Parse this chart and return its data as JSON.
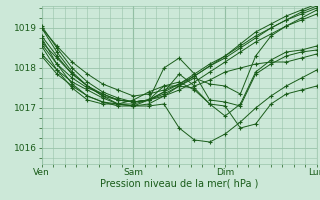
{
  "xlabel": "Pression niveau de la mer( hPa )",
  "bg_color": "#cce8d8",
  "plot_bg_color": "#cce8d8",
  "grid_color": "#99c4aa",
  "line_color": "#1a5c1a",
  "xlim": [
    0,
    72
  ],
  "ylim": [
    1015.6,
    1019.55
  ],
  "yticks": [
    1016,
    1017,
    1018,
    1019
  ],
  "xtick_positions": [
    0,
    24,
    48,
    72
  ],
  "xtick_labels": [
    "Ven",
    "Sam",
    "Dim",
    "Lun"
  ],
  "series": [
    [
      0,
      1019.0,
      4,
      1018.55,
      8,
      1018.15,
      12,
      1017.85,
      16,
      1017.6,
      20,
      1017.45,
      24,
      1017.3,
      28,
      1017.35,
      32,
      1017.45,
      36,
      1017.6,
      40,
      1017.8,
      44,
      1018.05,
      48,
      1018.3,
      52,
      1018.6,
      56,
      1018.9,
      60,
      1019.1,
      64,
      1019.3,
      68,
      1019.45,
      72,
      1019.6
    ],
    [
      0,
      1019.05,
      4,
      1018.5,
      8,
      1018.0,
      12,
      1017.65,
      16,
      1017.4,
      20,
      1017.25,
      24,
      1017.15,
      28,
      1017.2,
      32,
      1017.3,
      36,
      1017.45,
      40,
      1017.65,
      44,
      1017.9,
      48,
      1018.15,
      52,
      1018.4,
      56,
      1018.65,
      60,
      1018.85,
      64,
      1019.05,
      68,
      1019.25,
      72,
      1019.45
    ],
    [
      0,
      1019.0,
      4,
      1018.4,
      8,
      1017.9,
      12,
      1017.55,
      16,
      1017.3,
      20,
      1017.2,
      24,
      1017.15,
      28,
      1017.2,
      32,
      1017.35,
      36,
      1017.55,
      40,
      1017.8,
      44,
      1018.05,
      48,
      1018.25,
      52,
      1018.5,
      56,
      1018.75,
      60,
      1019.0,
      64,
      1019.2,
      68,
      1019.35,
      72,
      1019.5
    ],
    [
      0,
      1018.8,
      4,
      1018.3,
      8,
      1017.85,
      12,
      1017.55,
      16,
      1017.35,
      20,
      1017.2,
      24,
      1017.15,
      28,
      1017.2,
      32,
      1017.4,
      36,
      1017.6,
      40,
      1017.85,
      44,
      1018.1,
      48,
      1018.3,
      52,
      1018.55,
      56,
      1018.8,
      60,
      1019.0,
      64,
      1019.2,
      68,
      1019.4,
      72,
      1019.55
    ],
    [
      0,
      1018.6,
      4,
      1018.1,
      8,
      1017.75,
      12,
      1017.5,
      16,
      1017.35,
      20,
      1017.2,
      24,
      1017.15,
      28,
      1017.2,
      32,
      1017.4,
      36,
      1017.85,
      40,
      1017.55,
      44,
      1017.7,
      48,
      1017.9,
      52,
      1018.0,
      56,
      1018.1,
      60,
      1018.15,
      64,
      1018.15,
      68,
      1018.25,
      72,
      1018.35
    ],
    [
      0,
      1018.35,
      4,
      1017.95,
      8,
      1017.65,
      12,
      1017.45,
      16,
      1017.25,
      20,
      1017.1,
      24,
      1017.05,
      28,
      1017.05,
      32,
      1017.1,
      36,
      1016.5,
      40,
      1016.2,
      44,
      1016.15,
      48,
      1016.35,
      52,
      1016.65,
      56,
      1017.0,
      60,
      1017.3,
      64,
      1017.55,
      68,
      1017.75,
      72,
      1017.95
    ],
    [
      0,
      1018.3,
      4,
      1017.85,
      8,
      1017.55,
      12,
      1017.3,
      16,
      1017.15,
      20,
      1017.05,
      24,
      1017.05,
      28,
      1017.1,
      32,
      1017.3,
      36,
      1017.55,
      40,
      1017.75,
      44,
      1017.6,
      48,
      1017.55,
      52,
      1017.35,
      56,
      1018.3,
      60,
      1018.8,
      64,
      1019.05,
      68,
      1019.2,
      72,
      1019.35
    ],
    [
      0,
      1018.75,
      4,
      1018.1,
      8,
      1017.6,
      12,
      1017.3,
      16,
      1017.15,
      20,
      1017.1,
      24,
      1017.1,
      28,
      1017.2,
      32,
      1017.55,
      36,
      1017.65,
      40,
      1017.45,
      44,
      1017.1,
      48,
      1016.8,
      52,
      1017.1,
      56,
      1017.9,
      60,
      1018.2,
      64,
      1018.4,
      68,
      1018.45,
      72,
      1018.55
    ],
    [
      0,
      1018.65,
      4,
      1018.25,
      8,
      1017.85,
      12,
      1017.55,
      16,
      1017.3,
      20,
      1017.1,
      24,
      1017.05,
      28,
      1017.2,
      32,
      1018.0,
      36,
      1018.25,
      40,
      1017.85,
      44,
      1017.2,
      48,
      1017.15,
      52,
      1017.05,
      56,
      1017.85,
      60,
      1018.1,
      64,
      1018.3,
      68,
      1018.4,
      72,
      1018.45
    ],
    [
      0,
      1018.55,
      4,
      1017.95,
      8,
      1017.5,
      12,
      1017.2,
      16,
      1017.1,
      20,
      1017.1,
      24,
      1017.2,
      28,
      1017.4,
      32,
      1017.55,
      36,
      1017.55,
      40,
      1017.5,
      44,
      1017.1,
      48,
      1017.05,
      52,
      1016.5,
      56,
      1016.6,
      60,
      1017.1,
      64,
      1017.35,
      68,
      1017.45,
      72,
      1017.55
    ]
  ]
}
